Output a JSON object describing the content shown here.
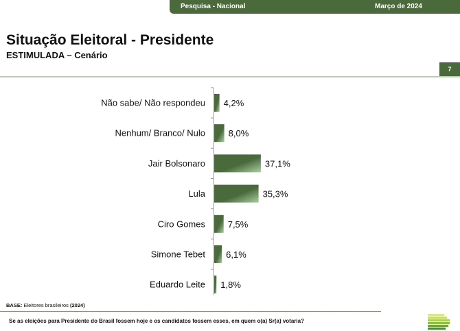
{
  "header": {
    "survey": "Pesquisa - Nacional",
    "date": "Março de 2024"
  },
  "title": "Situação Eleitoral - Presidente",
  "subtitle": "ESTIMULADA – Cenário",
  "page_number": "7",
  "base_label": "BASE:",
  "base_text": "Eleitores brasileiros",
  "base_year": "(2024)",
  "question": "Se as eleições para Presidente do Brasil fossem hoje e os candidatos fossem esses, em quem o(a) Sr(a) votaria?",
  "chart_data": {
    "type": "bar",
    "orientation": "horizontal",
    "categories": [
      "Não sabe/ Não respondeu",
      "Nenhum/ Branco/ Nulo",
      "Jair Bolsonaro",
      "Lula",
      "Ciro Gomes",
      "Simone Tebet",
      "Eduardo Leite"
    ],
    "values": [
      4.2,
      8.0,
      37.1,
      35.3,
      7.5,
      6.1,
      1.8
    ],
    "labels": [
      "4,2%",
      "8,0%",
      "37,1%",
      "35,3%",
      "7,5%",
      "6,1%",
      "1,8%"
    ],
    "title": "",
    "xlabel": "",
    "ylabel": "",
    "bar_color": "#4a6a3c"
  }
}
